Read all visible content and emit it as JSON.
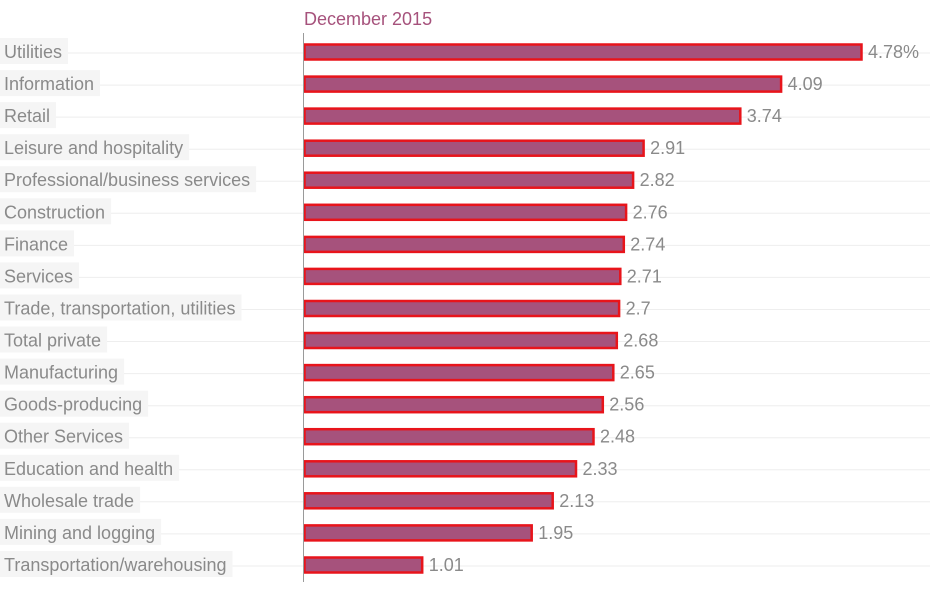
{
  "chart_data": {
    "type": "bar",
    "orientation": "horizontal",
    "series": [
      {
        "name": "December 2015",
        "values": [
          4.78,
          4.09,
          3.74,
          2.91,
          2.82,
          2.76,
          2.74,
          2.71,
          2.7,
          2.68,
          2.65,
          2.56,
          2.48,
          2.33,
          2.13,
          1.95,
          1.01
        ]
      }
    ],
    "categories": [
      "Utilities",
      "Information",
      "Retail",
      "Leisure and hospitality",
      "Professional/business services",
      "Construction",
      "Finance",
      "Services",
      "Trade, transportation, utilities",
      "Total private",
      "Manufacturing",
      "Goods-producing",
      "Other Services",
      "Education and health",
      "Wholesale trade",
      "Mining and logging",
      "Transportation/warehousing"
    ],
    "value_labels": [
      "4.78%",
      "4.09",
      "3.74",
      "2.91",
      "2.82",
      "2.76",
      "2.74",
      "2.71",
      "2.7",
      "2.68",
      "2.65",
      "2.56",
      "2.48",
      "2.33",
      "2.13",
      "1.95",
      "1.01"
    ],
    "xlim": [
      0,
      4.78
    ],
    "grid": true,
    "legend": "top",
    "colors": {
      "bar_fill": "#a6527c",
      "bar_stroke": "#e8141b",
      "legend_text": "#a6527c",
      "label_text": "#8a8a8a",
      "label_bg": "#f5f5f5",
      "grid": "#eeeeee",
      "axis": "#9a9a9a"
    }
  }
}
